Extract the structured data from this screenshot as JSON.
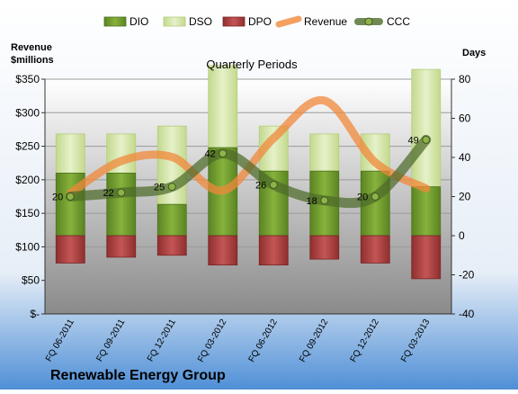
{
  "chart_data": {
    "type": "bar",
    "title": "Quarterly Periods",
    "company": "Renewable Energy Group",
    "left_axis_label": [
      "Revenue",
      "$millions"
    ],
    "right_axis_label": "Days",
    "legend_position": "top",
    "grid": true,
    "categories": [
      "FQ 06-2011",
      "FQ 09-2011",
      "FQ 12-2011",
      "FQ 03-2012",
      "FQ 06-2012",
      "FQ 09-2012",
      "FQ 12-2012",
      "FQ 03-2013"
    ],
    "left_axis": {
      "min": 0,
      "max": 350,
      "step": 50,
      "tick_labels": [
        "$-",
        "$50",
        "$100",
        "$150",
        "$200",
        "$250",
        "$300",
        "$350"
      ]
    },
    "right_axis": {
      "min": -40,
      "max": 80,
      "step": 20,
      "tick_labels": [
        "-40",
        "-20",
        "0",
        "20",
        "40",
        "60",
        "80"
      ]
    },
    "series": [
      {
        "name": "DIO",
        "kind": "stacked-bar",
        "axis": "right",
        "color": "#6f9a2a",
        "values": [
          32,
          32,
          16,
          45,
          33,
          33,
          33,
          25
        ]
      },
      {
        "name": "DSO",
        "kind": "stacked-bar",
        "axis": "right",
        "color": "#d4e6a8",
        "values": [
          20,
          20,
          40,
          42,
          23,
          19,
          19,
          60
        ]
      },
      {
        "name": "DPO",
        "kind": "negative-bar",
        "axis": "right",
        "color": "#a33a3a",
        "values": [
          -14,
          -11,
          -10,
          -15,
          -15,
          -12,
          -14,
          -22
        ]
      },
      {
        "name": "Revenue",
        "kind": "line",
        "axis": "left",
        "color": "#f0883a",
        "values": [
          180,
          228,
          234,
          184,
          262,
          318,
          226,
          187
        ]
      },
      {
        "name": "CCC",
        "kind": "line",
        "axis": "right",
        "color": "#4e6b2a",
        "values": [
          20,
          22,
          25,
          42,
          26,
          18,
          20,
          49
        ]
      }
    ]
  }
}
